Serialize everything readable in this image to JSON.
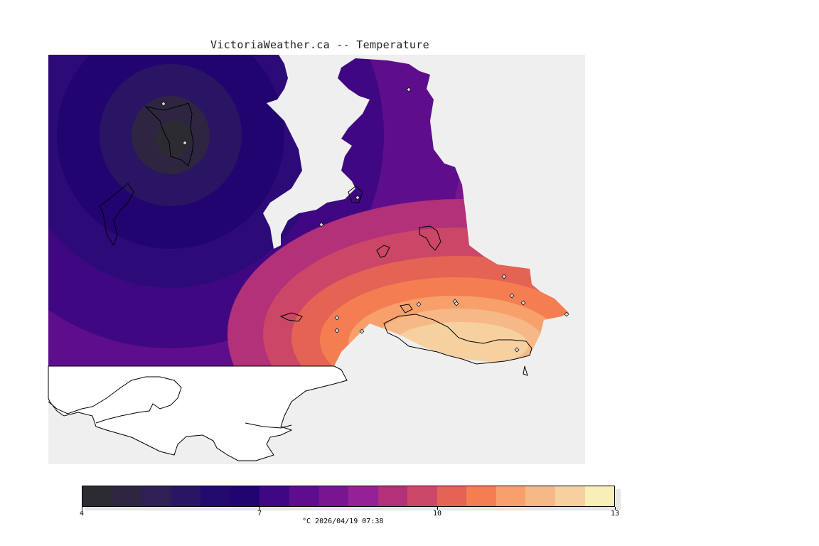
{
  "title": "VictoriaWeather.ca -- Temperature",
  "footer": "°C  2026/04/19 07:38",
  "colorbar": {
    "colors": [
      "#2d2b32",
      "#2e2640",
      "#2e1f55",
      "#2a1464",
      "#220a6f",
      "#220470",
      "#3f0882",
      "#5e0e8c",
      "#7a1592",
      "#962098",
      "#b23179",
      "#cc4767",
      "#e46355",
      "#f47e52",
      "#f7a06b",
      "#f7b887",
      "#f6d19f",
      "#f7eeb8"
    ],
    "labels": [
      {
        "text": "4",
        "value": 4
      },
      {
        "text": "7",
        "value": 7
      },
      {
        "text": "10",
        "value": 10
      },
      {
        "text": "13",
        "value": 13
      }
    ],
    "min": 4,
    "max": 13
  },
  "stations": [
    {
      "id": "st1"
    },
    {
      "id": "st2"
    },
    {
      "id": "st3"
    },
    {
      "id": "st4"
    },
    {
      "id": "st5"
    },
    {
      "id": "st6"
    },
    {
      "id": "st7"
    },
    {
      "id": "st8"
    },
    {
      "id": "st9"
    },
    {
      "id": "st10"
    },
    {
      "id": "st11"
    },
    {
      "id": "st12"
    },
    {
      "id": "st13"
    },
    {
      "id": "st14"
    },
    {
      "id": "st15"
    },
    {
      "id": "st16"
    }
  ]
}
